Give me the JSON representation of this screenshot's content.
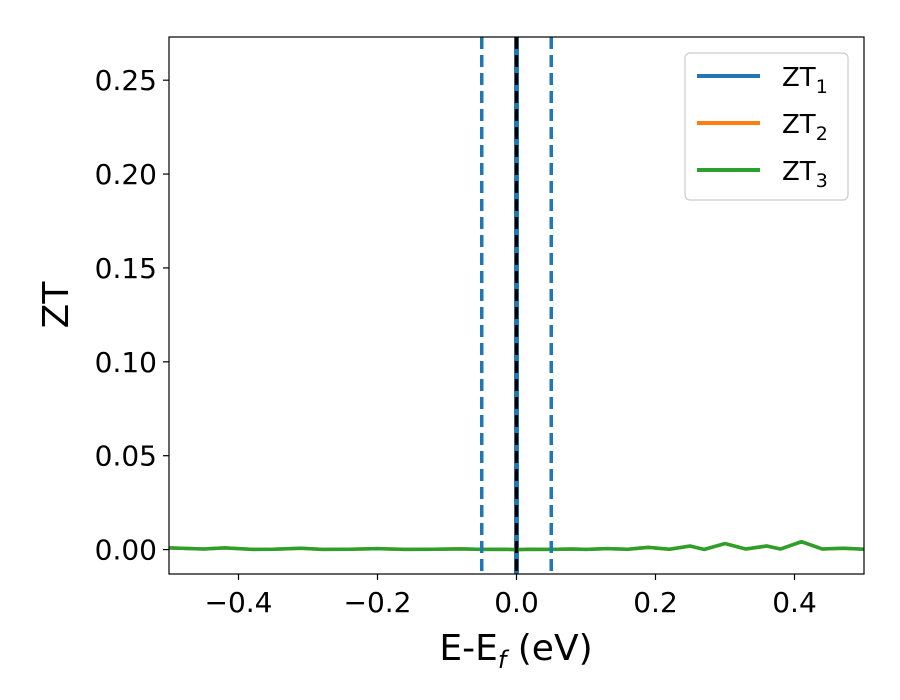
{
  "chart_data": {
    "type": "line",
    "xlabel": "E-E",
    "xlabel_subscript": "f",
    "xlabel_unit": " (eV)",
    "ylabel": "ZT",
    "xlim": [
      -0.5,
      0.5
    ],
    "ylim": [
      -0.013,
      0.273
    ],
    "x_ticks": [
      -0.4,
      -0.2,
      0.0,
      0.2,
      0.4
    ],
    "x_tick_labels": [
      "−0.4",
      "−0.2",
      "0.0",
      "0.2",
      "0.4"
    ],
    "y_ticks": [
      0.0,
      0.05,
      0.1,
      0.15,
      0.2,
      0.25
    ],
    "y_tick_labels": [
      "0.00",
      "0.05",
      "0.10",
      "0.15",
      "0.20",
      "0.25"
    ],
    "grid": false,
    "legend_position": "top-right",
    "series": [
      {
        "name": "ZT",
        "subscript": "1",
        "color": "#1f77b4",
        "points": [
          [
            -0.001,
            -0.013
          ],
          [
            -0.001,
            0.273
          ],
          [
            0.001,
            0.273
          ],
          [
            0.001,
            -0.013
          ]
        ]
      },
      {
        "name": "ZT",
        "subscript": "2",
        "color": "#ff7f0e",
        "points": [
          [
            -0.5,
            0.0009
          ],
          [
            -0.45,
            0.0003
          ],
          [
            -0.42,
            0.0009
          ],
          [
            -0.38,
            0.0001
          ],
          [
            -0.35,
            0.0002
          ],
          [
            -0.31,
            0.0007
          ],
          [
            -0.28,
            0.0001
          ],
          [
            -0.24,
            0.0002
          ],
          [
            -0.2,
            0.0005
          ],
          [
            -0.16,
            0.0001
          ],
          [
            -0.12,
            0.0002
          ],
          [
            -0.08,
            0.0004
          ],
          [
            -0.05,
            0.0001
          ],
          [
            -0.02,
            0.0002
          ],
          [
            0.0,
            0.0
          ],
          [
            0.02,
            0.0002
          ],
          [
            0.05,
            0.0001
          ],
          [
            0.08,
            0.0003
          ],
          [
            0.1,
            0.0001
          ],
          [
            0.13,
            0.0005
          ],
          [
            0.16,
            0.0002
          ],
          [
            0.19,
            0.0012
          ],
          [
            0.22,
            0.0002
          ],
          [
            0.25,
            0.0019
          ],
          [
            0.27,
            0.0001
          ],
          [
            0.3,
            0.0032
          ],
          [
            0.33,
            0.0003
          ],
          [
            0.36,
            0.0019
          ],
          [
            0.38,
            0.0003
          ],
          [
            0.41,
            0.0042
          ],
          [
            0.44,
            0.0003
          ],
          [
            0.47,
            0.0007
          ],
          [
            0.5,
            0.0002
          ]
        ]
      },
      {
        "name": "ZT",
        "subscript": "3",
        "color": "#2ca02c",
        "points": [
          [
            -0.5,
            0.0009
          ],
          [
            -0.45,
            0.0003
          ],
          [
            -0.42,
            0.0009
          ],
          [
            -0.38,
            0.0001
          ],
          [
            -0.35,
            0.0002
          ],
          [
            -0.31,
            0.0007
          ],
          [
            -0.28,
            0.0001
          ],
          [
            -0.24,
            0.0002
          ],
          [
            -0.2,
            0.0005
          ],
          [
            -0.16,
            0.0001
          ],
          [
            -0.12,
            0.0002
          ],
          [
            -0.08,
            0.0004
          ],
          [
            -0.05,
            0.0001
          ],
          [
            -0.02,
            0.0002
          ],
          [
            0.0,
            0.0
          ],
          [
            0.02,
            0.0002
          ],
          [
            0.05,
            0.0001
          ],
          [
            0.08,
            0.0003
          ],
          [
            0.1,
            0.0001
          ],
          [
            0.13,
            0.0005
          ],
          [
            0.16,
            0.0002
          ],
          [
            0.19,
            0.0012
          ],
          [
            0.22,
            0.0002
          ],
          [
            0.25,
            0.0019
          ],
          [
            0.27,
            0.0001
          ],
          [
            0.3,
            0.0032
          ],
          [
            0.33,
            0.0003
          ],
          [
            0.36,
            0.0019
          ],
          [
            0.38,
            0.0003
          ],
          [
            0.41,
            0.0042
          ],
          [
            0.44,
            0.0003
          ],
          [
            0.47,
            0.0007
          ],
          [
            0.5,
            0.0002
          ]
        ]
      }
    ],
    "reference_lines": [
      {
        "x": -0.05,
        "style": "dashed",
        "color": "#1f77b4"
      },
      {
        "x": 0.05,
        "style": "dashed",
        "color": "#1f77b4"
      },
      {
        "x": 0.0,
        "style": "dashed",
        "color": "#000000"
      }
    ]
  }
}
